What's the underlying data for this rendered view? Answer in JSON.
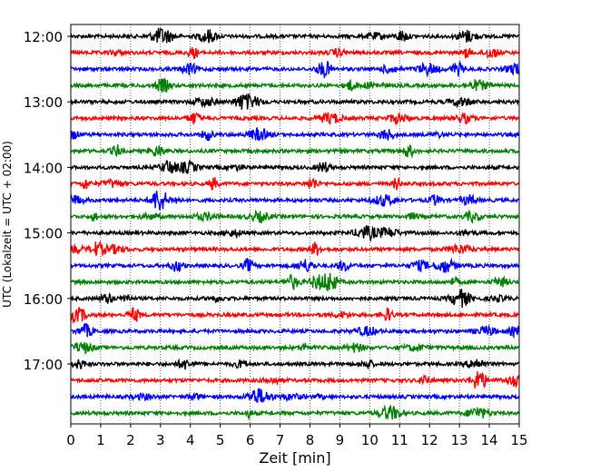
{
  "chart_data": {
    "type": "line",
    "title": "",
    "xlabel": "Zeit  [min]",
    "ylabel": "UTC (Lokalzeit = UTC + 02:00)",
    "xlim": [
      0,
      15
    ],
    "x_ticks": [
      0,
      1,
      2,
      3,
      4,
      5,
      6,
      7,
      8,
      9,
      10,
      11,
      12,
      13,
      14,
      15
    ],
    "y_tick_labels": [
      "12:00",
      "13:00",
      "14:00",
      "15:00",
      "16:00",
      "17:00"
    ],
    "grid": "vertical dotted at each minute",
    "trace_interval_min": 15,
    "series": [
      {
        "start": "12:00",
        "color": "#000000"
      },
      {
        "start": "12:15",
        "color": "#ff0000"
      },
      {
        "start": "12:30",
        "color": "#0000ff"
      },
      {
        "start": "12:45",
        "color": "#008000"
      },
      {
        "start": "13:00",
        "color": "#000000"
      },
      {
        "start": "13:15",
        "color": "#ff0000"
      },
      {
        "start": "13:30",
        "color": "#0000ff"
      },
      {
        "start": "13:45",
        "color": "#008000"
      },
      {
        "start": "14:00",
        "color": "#000000"
      },
      {
        "start": "14:15",
        "color": "#ff0000"
      },
      {
        "start": "14:30",
        "color": "#0000ff"
      },
      {
        "start": "14:45",
        "color": "#008000"
      },
      {
        "start": "15:00",
        "color": "#000000"
      },
      {
        "start": "15:15",
        "color": "#ff0000"
      },
      {
        "start": "15:30",
        "color": "#0000ff"
      },
      {
        "start": "15:45",
        "color": "#008000"
      },
      {
        "start": "16:00",
        "color": "#000000"
      },
      {
        "start": "16:15",
        "color": "#ff0000"
      },
      {
        "start": "16:30",
        "color": "#0000ff"
      },
      {
        "start": "16:45",
        "color": "#008000"
      },
      {
        "start": "17:00",
        "color": "#000000"
      },
      {
        "start": "17:15",
        "color": "#ff0000"
      },
      {
        "start": "17:30",
        "color": "#0000ff"
      },
      {
        "start": "17:45",
        "color": "#008000"
      }
    ]
  }
}
